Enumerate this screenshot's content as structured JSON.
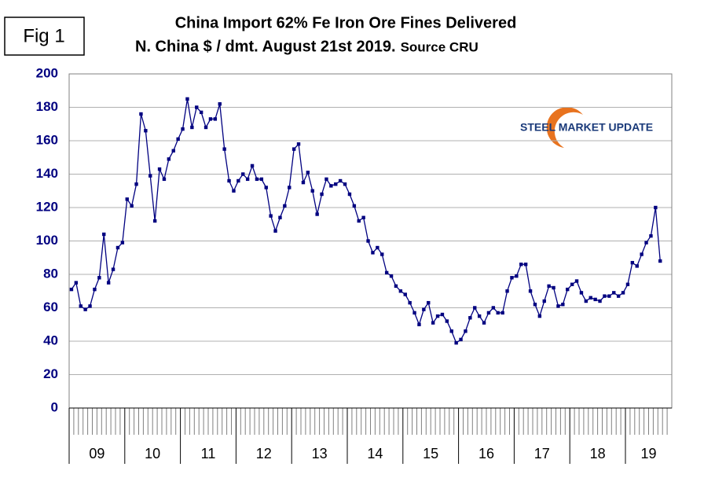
{
  "chart_data": {
    "type": "line",
    "figure_label": "Fig 1",
    "title": [
      "China Import 62% Fe Iron Ore Fines Delivered",
      "N. China $ / dmt. August 21st 2019."
    ],
    "source": "Source CRU",
    "logo": "STEEL MARKET UPDATE",
    "color": "#000080",
    "grid": true,
    "ylim": [
      0,
      200
    ],
    "yticks": [
      0,
      20,
      40,
      60,
      80,
      100,
      120,
      140,
      160,
      180,
      200
    ],
    "categories": [
      null,
      null,
      null,
      null,
      null,
      "09",
      null,
      null,
      null,
      null,
      null,
      null,
      null,
      null,
      null,
      null,
      null,
      "10",
      null,
      null,
      null,
      null,
      null,
      null,
      null,
      null,
      null,
      null,
      null,
      "11",
      null,
      null,
      null,
      null,
      null,
      null,
      null,
      null,
      null,
      null,
      null,
      "12",
      null,
      null,
      null,
      null,
      null,
      null,
      null,
      null,
      null,
      null,
      null,
      "13",
      null,
      null,
      null,
      null,
      null,
      null,
      null,
      null,
      null,
      null,
      null,
      "14",
      null,
      null,
      null,
      null,
      null,
      null,
      null,
      null,
      null,
      null,
      null,
      "15",
      null,
      null,
      null,
      null,
      null,
      null,
      null,
      null,
      null,
      null,
      null,
      "16",
      null,
      null,
      null,
      null,
      null,
      null,
      null,
      null,
      null,
      null,
      null,
      "17",
      null,
      null,
      null,
      null,
      null,
      null,
      null,
      null,
      null,
      null,
      null,
      "18",
      null,
      null,
      null,
      null,
      null,
      null,
      null,
      null,
      null,
      null,
      "19",
      null,
      null,
      null
    ],
    "values": [
      71,
      75,
      61,
      59,
      61,
      71,
      78,
      104,
      75,
      83,
      96,
      99,
      125,
      121,
      134,
      176,
      166,
      139,
      112,
      143,
      137,
      149,
      154,
      161,
      167,
      185,
      168,
      180,
      177,
      168,
      173,
      173,
      182,
      155,
      136,
      130,
      136,
      140,
      137,
      145,
      137,
      137,
      132,
      115,
      106,
      114,
      121,
      132,
      155,
      158,
      135,
      141,
      130,
      116,
      128,
      137,
      133,
      134,
      136,
      134,
      128,
      121,
      112,
      114,
      100,
      93,
      96,
      92,
      81,
      79,
      73,
      70,
      68,
      63,
      57,
      50,
      59,
      63,
      51,
      55,
      56,
      52,
      46,
      39,
      41,
      46,
      54,
      60,
      55,
      51,
      57,
      60,
      57,
      57,
      70,
      78,
      79,
      86,
      86,
      70,
      62,
      55,
      64,
      73,
      72,
      61,
      62,
      71,
      74,
      76,
      69,
      64,
      66,
      65,
      64,
      67,
      67,
      69,
      67,
      69,
      74,
      87,
      85,
      92,
      99,
      103,
      120,
      88
    ]
  }
}
